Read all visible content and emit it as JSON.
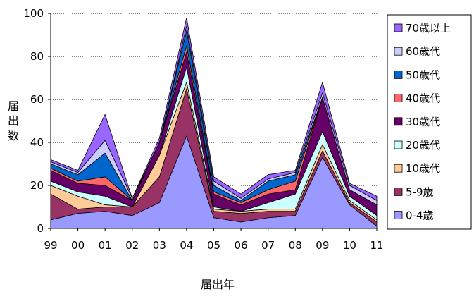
{
  "chart_data": {
    "type": "area",
    "stacked": true,
    "categories": [
      "99",
      "00",
      "01",
      "02",
      "03",
      "04",
      "05",
      "06",
      "07",
      "08",
      "09",
      "10",
      "11"
    ],
    "xlabel": "届出年",
    "ylabel": "届出数",
    "ylim": [
      0,
      100
    ],
    "yticks": [
      0,
      20,
      40,
      60,
      80,
      100
    ],
    "grid": "horizontal-dotted",
    "legend_position": "right",
    "series": [
      {
        "name": "0-4歳",
        "color": "#9999FF",
        "values": [
          4,
          7,
          8,
          6,
          12,
          43,
          5,
          3,
          5,
          6,
          33,
          11,
          1
        ]
      },
      {
        "name": "5-9歳",
        "color": "#993366",
        "values": [
          12,
          2,
          2,
          4,
          12,
          22,
          3,
          4,
          3,
          2,
          3,
          1,
          2
        ]
      },
      {
        "name": "10歳代",
        "color": "#FFCC99",
        "values": [
          4,
          6,
          1,
          0,
          10,
          3,
          1,
          1,
          1,
          1,
          3,
          1,
          1
        ]
      },
      {
        "name": "20歳代",
        "color": "#CCFFFF",
        "values": [
          2,
          2,
          4,
          0,
          0,
          7,
          1,
          0,
          3,
          7,
          6,
          2,
          2
        ]
      },
      {
        "name": "30歳代",
        "color": "#660066",
        "values": [
          5,
          4,
          5,
          3,
          6,
          7,
          6,
          3,
          4,
          2,
          16,
          3,
          5
        ]
      },
      {
        "name": "40歳代",
        "color": "#FF6666",
        "values": [
          1,
          1,
          4,
          0,
          0,
          3,
          1,
          1,
          2,
          4,
          0,
          0,
          0
        ]
      },
      {
        "name": "50歳代",
        "color": "#0066CC",
        "values": [
          2,
          3,
          11,
          0,
          0,
          7,
          3,
          1,
          4,
          3,
          0,
          0,
          0
        ]
      },
      {
        "name": "60歳代",
        "color": "#CCCCFF",
        "values": [
          1,
          1,
          6,
          1,
          0,
          2,
          2,
          1,
          1,
          1,
          2,
          2,
          2
        ]
      },
      {
        "name": "70歳以上",
        "color": "#9966FF",
        "values": [
          1,
          1,
          12,
          0,
          2,
          4,
          2,
          2,
          2,
          1,
          5,
          1,
          2
        ]
      }
    ]
  }
}
